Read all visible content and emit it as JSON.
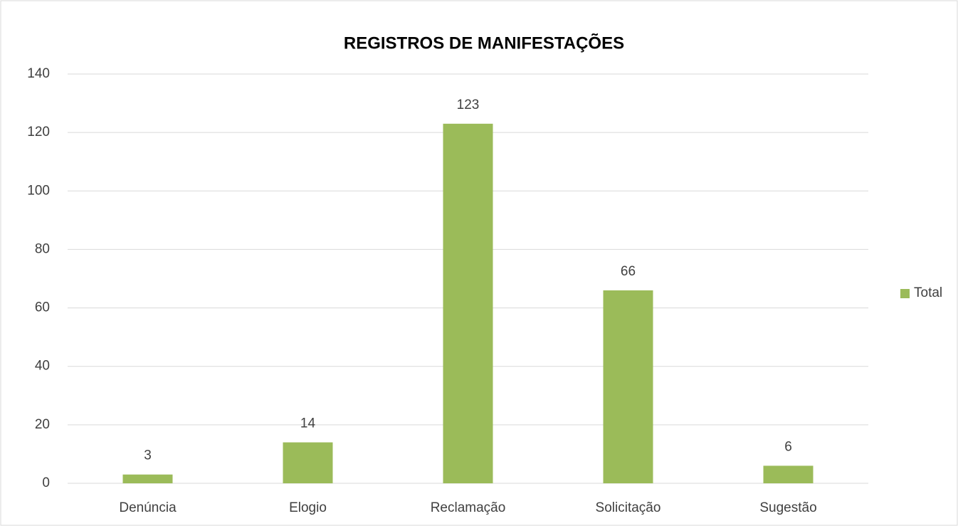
{
  "chart_data": {
    "type": "bar",
    "title": "REGISTROS DE MANIFESTAÇÕES",
    "categories": [
      "Denúncia",
      "Elogio",
      "Reclamação",
      "Solicitação",
      "Sugestão"
    ],
    "series": [
      {
        "name": "Total",
        "color": "#9bbb59",
        "values": [
          3,
          14,
          123,
          66,
          6
        ]
      }
    ],
    "ylim": [
      0,
      140
    ],
    "yticks": [
      0,
      20,
      40,
      60,
      80,
      100,
      120,
      140
    ],
    "grid": true,
    "legend": "right"
  }
}
